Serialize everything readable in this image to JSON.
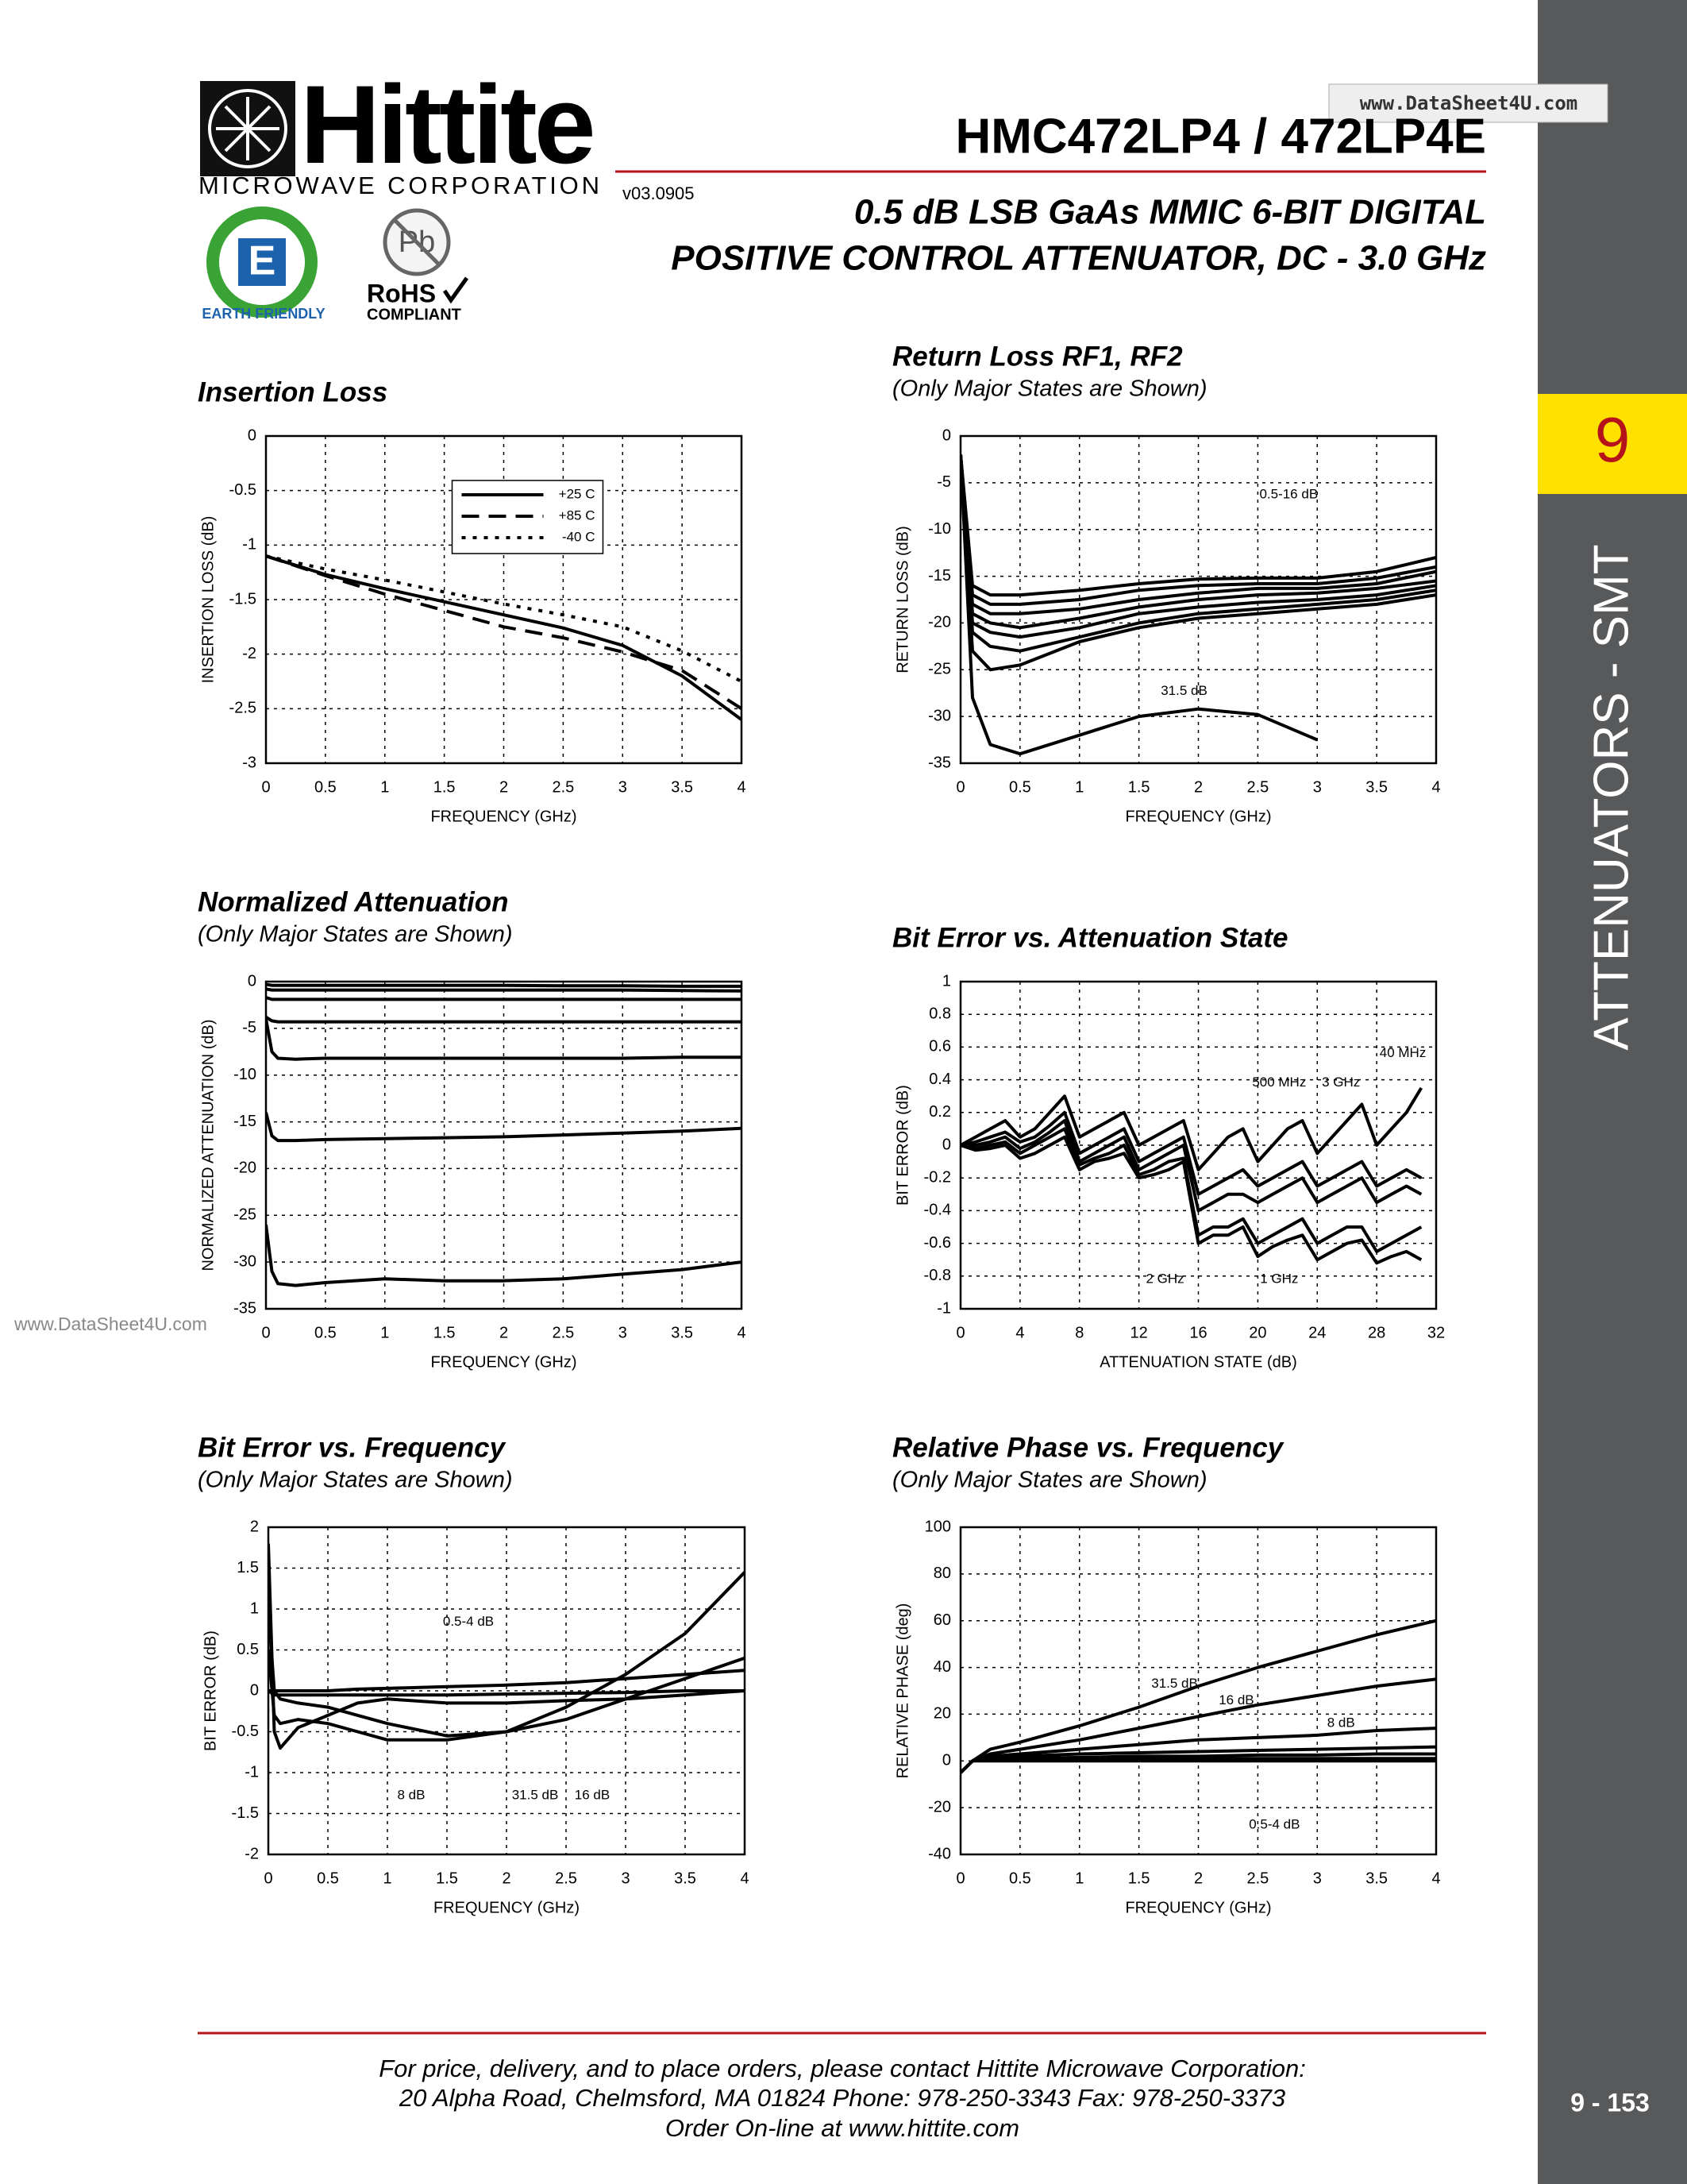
{
  "header": {
    "logo": "Hittite",
    "logo_sub": "MICROWAVE CORPORATION",
    "part_number": "HMC472LP4 / 472LP4E",
    "version": "v03.0905",
    "title_lines": [
      "0.5 dB LSB GaAs MMIC 6-BIT DIGITAL",
      "POSITIVE CONTROL ATTENUATOR, DC - 3.0 GHz"
    ],
    "badges": {
      "e": "E",
      "earth": "EARTH FRIENDLY",
      "pb": "Pb",
      "rohs": "RoHS",
      "compliant": "COMPLIANT"
    },
    "watermark": "www.DataSheet4U.com"
  },
  "sidebar": {
    "section": "9",
    "label": "ATTENUATORS - SMT",
    "page": "9 - 153"
  },
  "watermark_left": "www.DataSheet4U.com",
  "footer": {
    "lines": [
      "For price, delivery, and to place orders, please contact Hittite Microwave Corporation:",
      "20 Alpha Road, Chelmsford, MA 01824 Phone: 978-250-3343  Fax: 978-250-3373",
      "Order On-line at www.hittite.com"
    ]
  },
  "chart_data": [
    {
      "type": "line",
      "title": "Insertion Loss",
      "xlabel": "FREQUENCY (GHz)",
      "ylabel": "INSERTION LOSS (dB)",
      "xlim": [
        0,
        4
      ],
      "xticks": [
        0,
        0.5,
        1,
        1.5,
        2,
        2.5,
        3,
        3.5,
        4
      ],
      "ylim": [
        -3,
        0
      ],
      "yticks": [
        0,
        -0.5,
        -1,
        -1.5,
        -2,
        -2.5,
        -3
      ],
      "grid": true,
      "legend": "upper center",
      "x": [
        0,
        0.5,
        1,
        1.5,
        2,
        2.5,
        3,
        3.5,
        4
      ],
      "series": [
        {
          "name": "+25 C",
          "color": "#000000",
          "dash": "solid",
          "values": [
            -1.1,
            -1.27,
            -1.4,
            -1.52,
            -1.64,
            -1.76,
            -1.92,
            -2.2,
            -2.6
          ]
        },
        {
          "name": "+85 C",
          "color": "#000000",
          "dash": "dashed",
          "values": [
            -1.1,
            -1.28,
            -1.45,
            -1.6,
            -1.75,
            -1.85,
            -1.98,
            -2.15,
            -2.5
          ]
        },
        {
          "name": "-40 C",
          "color": "#000000",
          "dash": "dotted",
          "values": [
            -1.1,
            -1.22,
            -1.32,
            -1.43,
            -1.54,
            -1.64,
            -1.75,
            -1.97,
            -2.25
          ]
        }
      ]
    },
    {
      "type": "line",
      "title": "Return Loss RF1, RF2",
      "subtitle": "(Only Major States are Shown)",
      "xlabel": "FREQUENCY (GHz)",
      "ylabel": "RETURN LOSS (dB)",
      "xlim": [
        0,
        4
      ],
      "xticks": [
        0,
        0.5,
        1,
        1.5,
        2,
        2.5,
        3,
        3.5,
        4
      ],
      "ylim": [
        -35,
        0
      ],
      "yticks": [
        0,
        -5,
        -10,
        -15,
        -20,
        -25,
        -30,
        -35
      ],
      "grid": true,
      "annotations": [
        "0.5-16 dB",
        "31.5 dB"
      ],
      "x": [
        0,
        0.1,
        0.25,
        0.5,
        1,
        1.5,
        2,
        2.5,
        3,
        3.5,
        4
      ],
      "series": [
        {
          "color": "#000000",
          "values": [
            -2,
            -16,
            -17,
            -17,
            -16.5,
            -15.8,
            -15.3,
            -15.2,
            -15.2,
            -14.5,
            -13
          ]
        },
        {
          "color": "#000000",
          "values": [
            -2,
            -17,
            -18,
            -18,
            -17.5,
            -16.5,
            -16,
            -15.8,
            -15.8,
            -15.2,
            -14
          ]
        },
        {
          "color": "#000000",
          "values": [
            -2,
            -18,
            -19,
            -19,
            -18.5,
            -17.5,
            -16.8,
            -16.3,
            -16.3,
            -15.8,
            -14.5
          ]
        },
        {
          "color": "#000000",
          "values": [
            -2,
            -19,
            -20,
            -20.5,
            -19.5,
            -18.3,
            -17.5,
            -17,
            -16.8,
            -16.3,
            -15.5
          ]
        },
        {
          "color": "#000000",
          "values": [
            -2,
            -20,
            -21,
            -21.5,
            -20.5,
            -19,
            -18.3,
            -17.8,
            -17.5,
            -17,
            -16
          ]
        },
        {
          "color": "#000000",
          "values": [
            -2,
            -21,
            -22.5,
            -23,
            -21.5,
            -20,
            -19,
            -18.5,
            -18,
            -17.5,
            -16.5
          ]
        },
        {
          "color": "#000000",
          "values": [
            -2,
            -23,
            -25,
            -24.5,
            -22,
            -20.5,
            -19.5,
            -19,
            -18.5,
            -18,
            -17
          ]
        },
        {
          "color": "#000000",
          "values": [
            -2,
            -28,
            -33,
            -34,
            -32,
            -30,
            -29.2,
            -29.8,
            -32.5,
            null,
            null
          ]
        }
      ]
    },
    {
      "type": "line",
      "title": "Normalized Attenuation",
      "subtitle": "(Only Major States are Shown)",
      "xlabel": "FREQUENCY (GHz)",
      "ylabel": "NORMALIZED ATTENUATION (dB)",
      "xlim": [
        0,
        4
      ],
      "xticks": [
        0,
        0.5,
        1,
        1.5,
        2,
        2.5,
        3,
        3.5,
        4
      ],
      "ylim": [
        -35,
        0
      ],
      "yticks": [
        0,
        -5,
        -10,
        -15,
        -20,
        -25,
        -30,
        -35
      ],
      "grid": true,
      "x": [
        0,
        0.05,
        0.1,
        0.25,
        0.5,
        1,
        1.5,
        2,
        2.5,
        3,
        3.5,
        4
      ],
      "series": [
        {
          "color": "#000000",
          "values": [
            -0.3,
            -0.4,
            -0.4,
            -0.4,
            -0.4,
            -0.4,
            -0.4,
            -0.4,
            -0.45,
            -0.45,
            -0.5,
            -0.5
          ]
        },
        {
          "color": "#000000",
          "values": [
            -0.8,
            -0.9,
            -0.9,
            -0.9,
            -0.9,
            -0.9,
            -0.9,
            -0.9,
            -0.9,
            -0.9,
            -0.95,
            -1
          ]
        },
        {
          "color": "#000000",
          "values": [
            -1.7,
            -1.9,
            -1.9,
            -1.9,
            -1.9,
            -1.9,
            -1.9,
            -1.9,
            -1.9,
            -1.9,
            -1.9,
            -1.9
          ]
        },
        {
          "color": "#000000",
          "values": [
            -3.8,
            -4.2,
            -4.3,
            -4.3,
            -4.3,
            -4.3,
            -4.3,
            -4.3,
            -4.3,
            -4.3,
            -4.3,
            -4.3
          ]
        },
        {
          "color": "#000000",
          "values": [
            -4,
            -7.5,
            -8.2,
            -8.3,
            -8.2,
            -8.2,
            -8.2,
            -8.2,
            -8.2,
            -8.2,
            -8.1,
            -8.1
          ]
        },
        {
          "color": "#000000",
          "values": [
            -14,
            -16.5,
            -17,
            -17,
            -16.9,
            -16.8,
            -16.7,
            -16.6,
            -16.4,
            -16.2,
            -16,
            -15.7
          ]
        },
        {
          "color": "#000000",
          "values": [
            -26,
            -31,
            -32.3,
            -32.5,
            -32.2,
            -31.8,
            -32,
            -32,
            -31.8,
            -31.3,
            -30.8,
            -30
          ]
        }
      ]
    },
    {
      "type": "line",
      "title": "Bit Error vs. Attenuation State",
      "xlabel": "ATTENUATION STATE (dB)",
      "ylabel": "BIT ERROR (dB)",
      "xlim": [
        0,
        32
      ],
      "xticks": [
        0,
        4,
        8,
        12,
        16,
        20,
        24,
        28,
        32
      ],
      "ylim": [
        -1,
        1
      ],
      "yticks": [
        1,
        0.8,
        0.6,
        0.4,
        0.2,
        0,
        -0.2,
        -0.4,
        -0.6,
        -0.8,
        -1
      ],
      "grid": true,
      "annotations": [
        "40 MHz",
        "500 MHz",
        "3 GHz",
        "2 GHz",
        "1 GHz"
      ],
      "x": [
        0,
        1,
        2,
        3,
        4,
        5,
        6,
        7,
        8,
        9,
        10,
        11,
        12,
        13,
        14,
        15,
        16,
        17,
        18,
        19,
        20,
        21,
        22,
        23,
        24,
        25,
        26,
        27,
        28,
        29,
        30,
        31
      ],
      "series": [
        {
          "color": "#000000",
          "values": [
            0,
            0.05,
            0.1,
            0.15,
            0.05,
            0.1,
            0.2,
            0.3,
            0.05,
            0.1,
            0.15,
            0.2,
            0,
            0.05,
            0.1,
            0.15,
            -0.15,
            -0.05,
            0.05,
            0.1,
            -0.1,
            0,
            0.1,
            0.15,
            -0.05,
            0.05,
            0.15,
            0.25,
            0,
            0.1,
            0.2,
            0.35
          ]
        },
        {
          "color": "#000000",
          "values": [
            0,
            0.02,
            0.05,
            0.08,
            0.02,
            0.05,
            0.12,
            0.2,
            -0.05,
            0,
            0.05,
            0.1,
            -0.1,
            -0.05,
            0,
            0.05,
            -0.3,
            -0.25,
            -0.2,
            -0.15,
            -0.25,
            -0.2,
            -0.15,
            -0.1,
            -0.25,
            -0.2,
            -0.15,
            -0.1,
            -0.25,
            -0.2,
            -0.15,
            -0.2
          ]
        },
        {
          "color": "#000000",
          "values": [
            0,
            0,
            0.02,
            0.05,
            -0.02,
            0.02,
            0.08,
            0.15,
            -0.1,
            -0.05,
            0,
            0.05,
            -0.15,
            -0.1,
            -0.05,
            0,
            -0.4,
            -0.35,
            -0.3,
            -0.3,
            -0.35,
            -0.3,
            -0.25,
            -0.2,
            -0.35,
            -0.3,
            -0.25,
            -0.2,
            -0.35,
            -0.3,
            -0.25,
            -0.3
          ]
        },
        {
          "color": "#000000",
          "values": [
            0,
            -0.02,
            0,
            0.02,
            -0.05,
            0,
            0.05,
            0.1,
            -0.12,
            -0.08,
            -0.05,
            0,
            -0.18,
            -0.15,
            -0.1,
            -0.08,
            -0.55,
            -0.5,
            -0.5,
            -0.45,
            -0.6,
            -0.55,
            -0.5,
            -0.45,
            -0.6,
            -0.55,
            -0.5,
            -0.5,
            -0.65,
            -0.6,
            -0.55,
            -0.5
          ]
        },
        {
          "color": "#000000",
          "values": [
            0,
            -0.03,
            -0.02,
            0,
            -0.08,
            -0.05,
            0,
            0.05,
            -0.15,
            -0.1,
            -0.08,
            -0.05,
            -0.2,
            -0.18,
            -0.15,
            -0.1,
            -0.6,
            -0.55,
            -0.55,
            -0.5,
            -0.68,
            -0.62,
            -0.58,
            -0.55,
            -0.7,
            -0.65,
            -0.6,
            -0.58,
            -0.72,
            -0.68,
            -0.65,
            -0.7
          ]
        }
      ]
    },
    {
      "type": "line",
      "title": "Bit Error vs. Frequency",
      "subtitle": "(Only Major States are Shown)",
      "xlabel": "FREQUENCY (GHz)",
      "ylabel": "BIT ERROR (dB)",
      "xlim": [
        0,
        4
      ],
      "xticks": [
        0,
        0.5,
        1,
        1.5,
        2,
        2.5,
        3,
        3.5,
        4
      ],
      "ylim": [
        -2,
        2
      ],
      "yticks": [
        2,
        1.5,
        1,
        0.5,
        0,
        -0.5,
        -1,
        -1.5,
        -2
      ],
      "grid": true,
      "annotations": [
        "0.5-4 dB",
        "8 dB",
        "31.5 dB",
        "16 dB"
      ],
      "x": [
        0,
        0.05,
        0.1,
        0.25,
        0.5,
        0.75,
        1,
        1.5,
        2,
        2.5,
        3,
        3.5,
        4
      ],
      "series": [
        {
          "color": "#000000",
          "values": [
            0,
            0,
            0,
            0,
            0,
            0.02,
            0.03,
            0.05,
            0.07,
            0.1,
            0.15,
            0.2,
            0.25
          ]
        },
        {
          "color": "#000000",
          "values": [
            0,
            -0.05,
            -0.05,
            -0.05,
            -0.05,
            -0.05,
            -0.05,
            -0.05,
            -0.04,
            -0.03,
            -0.02,
            0,
            0
          ]
        },
        {
          "color": "#000000",
          "values": [
            1.8,
            -0.5,
            -0.7,
            -0.45,
            -0.3,
            -0.15,
            -0.1,
            -0.15,
            -0.15,
            -0.12,
            -0.1,
            -0.05,
            0
          ]
        },
        {
          "color": "#000000",
          "values": [
            0.5,
            -0.3,
            -0.4,
            -0.35,
            -0.4,
            -0.5,
            -0.6,
            -0.6,
            -0.5,
            -0.2,
            0.2,
            0.7,
            1.45
          ]
        },
        {
          "color": "#000000",
          "values": [
            1,
            0,
            -0.1,
            -0.15,
            -0.2,
            -0.3,
            -0.4,
            -0.55,
            -0.5,
            -0.35,
            -0.1,
            0.15,
            0.4
          ]
        }
      ]
    },
    {
      "type": "line",
      "title": "Relative Phase vs. Frequency",
      "subtitle": "(Only Major States are Shown)",
      "xlabel": "FREQUENCY (GHz)",
      "ylabel": "RELATIVE PHASE (deg)",
      "xlim": [
        0,
        4
      ],
      "xticks": [
        0,
        0.5,
        1,
        1.5,
        2,
        2.5,
        3,
        3.5,
        4
      ],
      "ylim": [
        -40,
        100
      ],
      "yticks": [
        100,
        80,
        60,
        40,
        20,
        0,
        -20,
        -40
      ],
      "grid": true,
      "annotations": [
        "31.5 dB",
        "16 dB",
        "8 dB",
        "0.5-4 dB"
      ],
      "x": [
        0,
        0.1,
        0.25,
        0.5,
        1,
        1.5,
        2,
        2.5,
        3,
        3.5,
        4
      ],
      "series": [
        {
          "color": "#000000",
          "values": [
            -5,
            0,
            5,
            8,
            15,
            23,
            32,
            40,
            47,
            54,
            60
          ]
        },
        {
          "color": "#000000",
          "values": [
            -5,
            0,
            3,
            5,
            9,
            14,
            19,
            24,
            28,
            32,
            35
          ]
        },
        {
          "color": "#000000",
          "values": [
            -5,
            0,
            2,
            3,
            5,
            7,
            9,
            10,
            11,
            13,
            14
          ]
        },
        {
          "color": "#000000",
          "values": [
            -5,
            0,
            1.5,
            2,
            3,
            3.5,
            4,
            4.5,
            5,
            5.5,
            6
          ]
        },
        {
          "color": "#000000",
          "values": [
            -5,
            0,
            1,
            1,
            1.5,
            2,
            2,
            2.5,
            2.5,
            3,
            3
          ]
        },
        {
          "color": "#000000",
          "values": [
            -5,
            0,
            0.5,
            0.5,
            0.5,
            1,
            1,
            1,
            1,
            1,
            1
          ]
        },
        {
          "color": "#000000",
          "values": [
            -5,
            0,
            0,
            0,
            0,
            0,
            0,
            0,
            0,
            0,
            0
          ]
        }
      ]
    }
  ]
}
